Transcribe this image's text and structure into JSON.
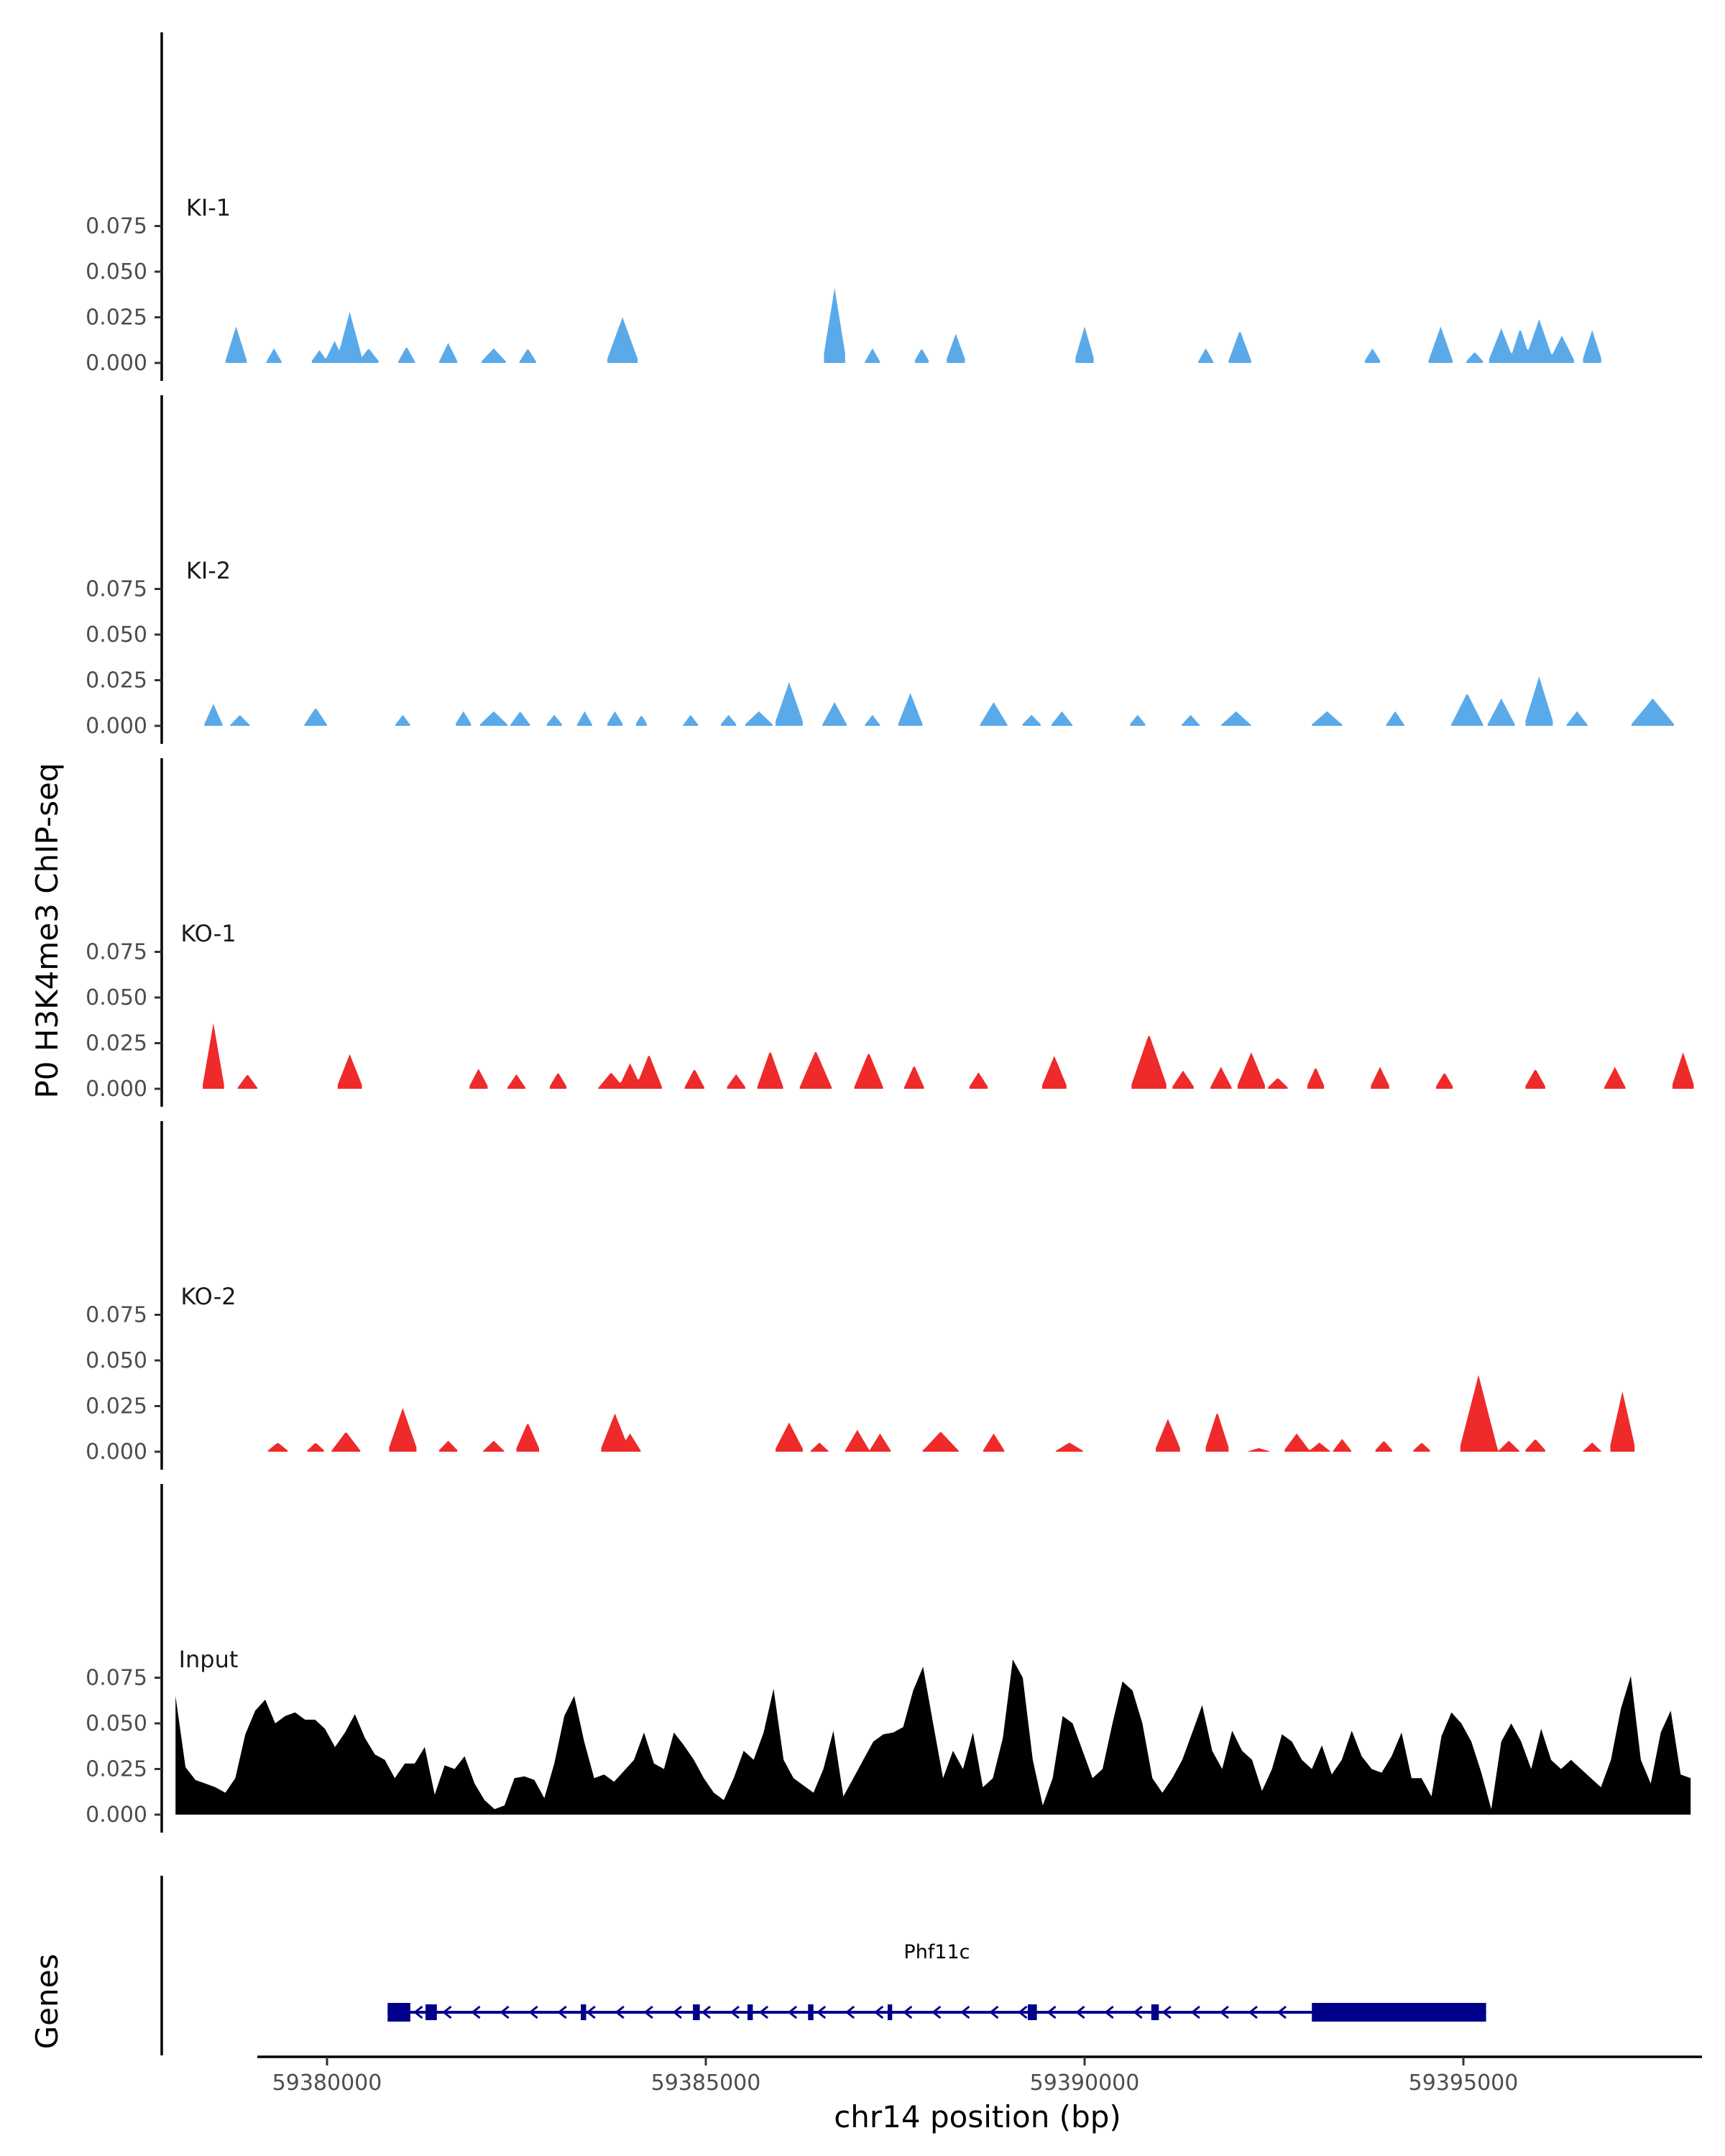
{
  "chart_data": {
    "type": "area",
    "title": "",
    "ylabel": "P0 H3K4me3 ChIP-seq",
    "xlabel": "chr14 position (bp)",
    "xlim": [
      59377000,
      59398500
    ],
    "ylim": [
      0,
      0.09
    ],
    "x_ticks": [
      59380000,
      59385000,
      59390000,
      59395000
    ],
    "x_tick_labels": [
      "59380000",
      "59385000",
      "59390000",
      "59395000"
    ],
    "y_ticks": [
      0,
      0.025,
      0.05,
      0.075
    ],
    "y_tick_labels": [
      "0.000",
      "0.025",
      "0.050",
      "0.075"
    ],
    "colors": {
      "KI": "#5aaaea",
      "KO": "#ee2a2a",
      "Input": "#000000",
      "gene": "#00008b",
      "axis": "#000000"
    },
    "series": [
      {
        "name": "KI-1",
        "color": "#5aaaea",
        "peaks": [
          [
            59378800,
            0.02,
            150
          ],
          [
            59379300,
            0.008,
            110
          ],
          [
            59379900,
            0.007,
            120
          ],
          [
            59380100,
            0.012,
            140
          ],
          [
            59380300,
            0.028,
            180
          ],
          [
            59380550,
            0.008,
            150
          ],
          [
            59381050,
            0.009,
            120
          ],
          [
            59381600,
            0.011,
            130
          ],
          [
            59382200,
            0.008,
            180
          ],
          [
            59382650,
            0.008,
            120
          ],
          [
            59383900,
            0.025,
            220
          ],
          [
            59386700,
            0.041,
            160
          ],
          [
            59387200,
            0.008,
            110
          ],
          [
            59387850,
            0.008,
            110
          ],
          [
            59388300,
            0.016,
            140
          ],
          [
            59390000,
            0.02,
            140
          ],
          [
            59391600,
            0.008,
            110
          ],
          [
            59392050,
            0.018,
            160
          ],
          [
            59393800,
            0.008,
            120
          ],
          [
            59394700,
            0.02,
            170
          ],
          [
            59395150,
            0.006,
            130
          ],
          [
            59395500,
            0.019,
            180
          ],
          [
            59395750,
            0.019,
            150
          ],
          [
            59396000,
            0.024,
            200
          ],
          [
            59396300,
            0.015,
            180
          ],
          [
            59396700,
            0.018,
            140
          ]
        ]
      },
      {
        "name": "KI-2",
        "color": "#5aaaea",
        "peaks": [
          [
            59378500,
            0.012,
            130
          ],
          [
            59378850,
            0.006,
            140
          ],
          [
            59379850,
            0.01,
            160
          ],
          [
            59381000,
            0.006,
            110
          ],
          [
            59381800,
            0.008,
            120
          ],
          [
            59382200,
            0.008,
            200
          ],
          [
            59382550,
            0.008,
            140
          ],
          [
            59383000,
            0.006,
            120
          ],
          [
            59383400,
            0.008,
            110
          ],
          [
            59383800,
            0.008,
            120
          ],
          [
            59384150,
            0.006,
            90
          ],
          [
            59384800,
            0.006,
            110
          ],
          [
            59385300,
            0.006,
            120
          ],
          [
            59385700,
            0.008,
            200
          ],
          [
            59386100,
            0.024,
            200
          ],
          [
            59386700,
            0.013,
            170
          ],
          [
            59387200,
            0.006,
            110
          ],
          [
            59387700,
            0.018,
            170
          ],
          [
            59388800,
            0.013,
            190
          ],
          [
            59389300,
            0.006,
            140
          ],
          [
            59389700,
            0.008,
            150
          ],
          [
            59390700,
            0.006,
            120
          ],
          [
            59391400,
            0.006,
            130
          ],
          [
            59392000,
            0.008,
            210
          ],
          [
            59393200,
            0.008,
            220
          ],
          [
            59394100,
            0.008,
            130
          ],
          [
            59395050,
            0.018,
            220
          ],
          [
            59395500,
            0.015,
            190
          ],
          [
            59396000,
            0.027,
            200
          ],
          [
            59396500,
            0.008,
            150
          ],
          [
            59397500,
            0.015,
            300
          ]
        ]
      },
      {
        "name": "KO-1",
        "color": "#ee2a2a",
        "peaks": [
          [
            59378500,
            0.036,
            150
          ],
          [
            59378950,
            0.008,
            140
          ],
          [
            59380300,
            0.019,
            180
          ],
          [
            59382000,
            0.011,
            140
          ],
          [
            59382500,
            0.008,
            130
          ],
          [
            59383050,
            0.009,
            130
          ],
          [
            59383750,
            0.009,
            180
          ],
          [
            59384000,
            0.014,
            160
          ],
          [
            59384250,
            0.019,
            180
          ],
          [
            59384850,
            0.011,
            140
          ],
          [
            59385400,
            0.008,
            140
          ],
          [
            59385850,
            0.021,
            180
          ],
          [
            59386450,
            0.021,
            220
          ],
          [
            59387150,
            0.02,
            200
          ],
          [
            59387750,
            0.013,
            140
          ],
          [
            59388600,
            0.009,
            140
          ],
          [
            59389600,
            0.018,
            180
          ],
          [
            59390850,
            0.03,
            250
          ],
          [
            59391300,
            0.01,
            160
          ],
          [
            59391800,
            0.012,
            150
          ],
          [
            59392200,
            0.02,
            200
          ],
          [
            59392550,
            0.006,
            150
          ],
          [
            59393050,
            0.012,
            130
          ],
          [
            59393900,
            0.012,
            140
          ],
          [
            59394750,
            0.009,
            130
          ],
          [
            59395950,
            0.011,
            150
          ],
          [
            59397000,
            0.012,
            150
          ],
          [
            59397900,
            0.02,
            160
          ]
        ]
      },
      {
        "name": "KO-2",
        "color": "#ee2a2a",
        "peaks": [
          [
            59379350,
            0.005,
            150
          ],
          [
            59379850,
            0.005,
            130
          ],
          [
            59380250,
            0.011,
            200
          ],
          [
            59381000,
            0.024,
            200
          ],
          [
            59381600,
            0.006,
            140
          ],
          [
            59382200,
            0.006,
            150
          ],
          [
            59382650,
            0.016,
            170
          ],
          [
            59383800,
            0.021,
            200
          ],
          [
            59384000,
            0.01,
            150
          ],
          [
            59386100,
            0.016,
            200
          ],
          [
            59386500,
            0.005,
            130
          ],
          [
            59387000,
            0.012,
            170
          ],
          [
            59387300,
            0.01,
            150
          ],
          [
            59388100,
            0.011,
            250
          ],
          [
            59388800,
            0.01,
            150
          ],
          [
            59389800,
            0.005,
            200
          ],
          [
            59391100,
            0.018,
            180
          ],
          [
            59391750,
            0.022,
            170
          ],
          [
            59392300,
            0.002,
            160
          ],
          [
            59392800,
            0.01,
            180
          ],
          [
            59393100,
            0.005,
            150
          ],
          [
            59393400,
            0.007,
            130
          ],
          [
            59393950,
            0.006,
            130
          ],
          [
            59394450,
            0.005,
            130
          ],
          [
            59395200,
            0.042,
            260
          ],
          [
            59395600,
            0.006,
            150
          ],
          [
            59395950,
            0.007,
            150
          ],
          [
            59396700,
            0.005,
            130
          ],
          [
            59397100,
            0.033,
            180
          ]
        ]
      },
      {
        "name": "Input",
        "color": "#000000",
        "x_range": [
          59378000,
          59398000
        ],
        "values": [
          0.065,
          0.026,
          0.019,
          0.017,
          0.015,
          0.012,
          0.02,
          0.044,
          0.057,
          0.063,
          0.05,
          0.054,
          0.056,
          0.052,
          0.052,
          0.047,
          0.037,
          0.045,
          0.055,
          0.042,
          0.033,
          0.03,
          0.02,
          0.028,
          0.028,
          0.037,
          0.011,
          0.027,
          0.025,
          0.032,
          0.017,
          0.008,
          0.003,
          0.005,
          0.02,
          0.021,
          0.019,
          0.009,
          0.028,
          0.054,
          0.065,
          0.04,
          0.02,
          0.022,
          0.018,
          0.024,
          0.03,
          0.045,
          0.028,
          0.025,
          0.045,
          0.038,
          0.03,
          0.02,
          0.012,
          0.008,
          0.02,
          0.035,
          0.03,
          0.045,
          0.069,
          0.03,
          0.02,
          0.016,
          0.012,
          0.025,
          0.046,
          0.01,
          0.02,
          0.03,
          0.04,
          0.044,
          0.045,
          0.048,
          0.068,
          0.081,
          0.05,
          0.02,
          0.035,
          0.025,
          0.045,
          0.015,
          0.02,
          0.042,
          0.085,
          0.075,
          0.03,
          0.005,
          0.02,
          0.054,
          0.05,
          0.035,
          0.02,
          0.025,
          0.05,
          0.073,
          0.068,
          0.05,
          0.02,
          0.012,
          0.02,
          0.03,
          0.045,
          0.06,
          0.035,
          0.025,
          0.046,
          0.035,
          0.03,
          0.013,
          0.025,
          0.044,
          0.04,
          0.03,
          0.025,
          0.038,
          0.022,
          0.03,
          0.046,
          0.032,
          0.025,
          0.023,
          0.032,
          0.045,
          0.02,
          0.02,
          0.01,
          0.043,
          0.056,
          0.05,
          0.04,
          0.023,
          0.003,
          0.04,
          0.05,
          0.04,
          0.025,
          0.047,
          0.03,
          0.025,
          0.03,
          0.025,
          0.02,
          0.015,
          0.03,
          0.058,
          0.076,
          0.03,
          0.017,
          0.045,
          0.057,
          0.022,
          0.02
        ]
      }
    ],
    "gene_track": {
      "label": "Genes",
      "gene_name": "Phf11c",
      "start": 59380800,
      "end": 59395300,
      "strand": "-",
      "exons": [
        [
          59380800,
          59381100
        ],
        [
          59381300,
          59381450
        ],
        [
          59383350,
          59383420
        ],
        [
          59384830,
          59384920
        ],
        [
          59385550,
          59385620
        ],
        [
          59386350,
          59386420
        ],
        [
          59387400,
          59387460
        ],
        [
          59389250,
          59389370
        ],
        [
          59390880,
          59390980
        ],
        [
          59393000,
          59395300
        ]
      ]
    }
  }
}
